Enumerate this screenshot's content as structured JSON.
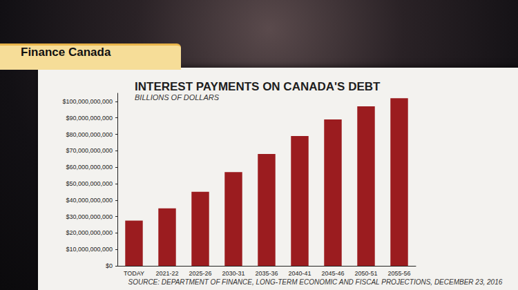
{
  "chart_data": {
    "type": "bar",
    "title": "INTEREST PAYMENTS ON CANADA'S DEBT",
    "subtitle": "BILLIONS OF DOLLARS",
    "annotations": [
      "Finance Canada",
      "SOURCE: DEPARTMENT OF FINANCE, LONG-TERM ECONOMIC AND FISCAL PROJECTIONS, DECEMBER 23, 2016"
    ],
    "categories": [
      "TODAY",
      "2021-22",
      "2025-26",
      "2030-31",
      "2035-36",
      "2040-41",
      "2045-46",
      "2050-51",
      "2055-56"
    ],
    "values": [
      27500000000,
      35000000000,
      45000000000,
      57000000000,
      68000000000,
      79000000000,
      89000000000,
      97000000000,
      102000000000
    ],
    "color": "#9b1c1f",
    "ylim": [
      0,
      105000000000
    ],
    "yticks": [
      {
        "value": 0,
        "label": "$0"
      },
      {
        "value": 10000000000,
        "label": "$10,000,000,000"
      },
      {
        "value": 20000000000,
        "label": "$20,000,000,000"
      },
      {
        "value": 30000000000,
        "label": "$30,000,000,000"
      },
      {
        "value": 40000000000,
        "label": "$40,000,000,000"
      },
      {
        "value": 50000000000,
        "label": "$50,000,000,000"
      },
      {
        "value": 60000000000,
        "label": "$60,000,000,000"
      },
      {
        "value": 70000000000,
        "label": "$70,000,000,000"
      },
      {
        "value": 80000000000,
        "label": "$80,000,000,000"
      },
      {
        "value": 90000000000,
        "label": "$90,000,000,000"
      },
      {
        "value": 100000000000,
        "label": "$100,000,000,000"
      }
    ],
    "grid": false
  }
}
